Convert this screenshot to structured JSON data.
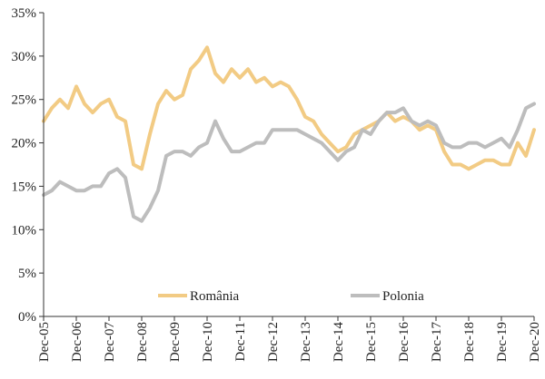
{
  "colors": {
    "romania": "#f2cb84",
    "polonia": "#bdbdbd",
    "axis": "#333333",
    "text": "#222222"
  },
  "chart_data": {
    "type": "line",
    "title": "",
    "xlabel": "",
    "ylabel": "",
    "ylim": [
      0,
      35
    ],
    "xlim": [
      "Dec-05",
      "Dec-20"
    ],
    "grid": false,
    "legend_position": "bottom",
    "y_ticks": [
      "0%",
      "5%",
      "10%",
      "15%",
      "20%",
      "25%",
      "30%",
      "35%"
    ],
    "x_ticks": [
      "Dec-05",
      "Dec-06",
      "Dec-07",
      "Dec-08",
      "Dec-09",
      "Dec-10",
      "Dec-11",
      "Dec-12",
      "Dec-13",
      "Dec-14",
      "Dec-15",
      "Dec-16",
      "Dec-17",
      "Dec-18",
      "Dec-19",
      "Dec-20"
    ],
    "series": [
      {
        "name": "România",
        "color": "#f2cb84",
        "x": [
          "Dec-05",
          "Mar-06",
          "Jun-06",
          "Sep-06",
          "Dec-06",
          "Mar-07",
          "Jun-07",
          "Sep-07",
          "Dec-07",
          "Mar-08",
          "Jun-08",
          "Sep-08",
          "Dec-08",
          "Mar-09",
          "Jun-09",
          "Sep-09",
          "Dec-09",
          "Mar-10",
          "Jun-10",
          "Sep-10",
          "Dec-10",
          "Mar-11",
          "Jun-11",
          "Sep-11",
          "Dec-11",
          "Mar-12",
          "Jun-12",
          "Sep-12",
          "Dec-12",
          "Mar-13",
          "Jun-13",
          "Sep-13",
          "Dec-13",
          "Mar-14",
          "Jun-14",
          "Sep-14",
          "Dec-14",
          "Mar-15",
          "Jun-15",
          "Sep-15",
          "Dec-15",
          "Mar-16",
          "Jun-16",
          "Sep-16",
          "Dec-16",
          "Mar-17",
          "Jun-17",
          "Sep-17",
          "Dec-17",
          "Mar-18",
          "Jun-18",
          "Sep-18",
          "Dec-18",
          "Mar-19",
          "Jun-19",
          "Sep-19",
          "Dec-19",
          "Mar-20",
          "Jun-20",
          "Sep-20",
          "Dec-20"
        ],
        "values": [
          22.5,
          24,
          25,
          24,
          26.5,
          24.5,
          23.5,
          24.5,
          25,
          23,
          22.5,
          17.5,
          17,
          21,
          24.5,
          26,
          25,
          25.5,
          28.5,
          29.5,
          31,
          28,
          27,
          28.5,
          27.5,
          28.5,
          27,
          27.5,
          26.5,
          27,
          26.5,
          25,
          23,
          22.5,
          21,
          20,
          19,
          19.5,
          21,
          21.5,
          22,
          22.5,
          23.5,
          22.5,
          23,
          22.5,
          21.5,
          22,
          21.5,
          19,
          17.5,
          17.5,
          17,
          17.5,
          18,
          18,
          17.5,
          17.5,
          20,
          18.5,
          21.5
        ]
      },
      {
        "name": "Polonia",
        "color": "#bdbdbd",
        "x": [
          "Dec-05",
          "Mar-06",
          "Jun-06",
          "Sep-06",
          "Dec-06",
          "Mar-07",
          "Jun-07",
          "Sep-07",
          "Dec-07",
          "Mar-08",
          "Jun-08",
          "Sep-08",
          "Dec-08",
          "Mar-09",
          "Jun-09",
          "Sep-09",
          "Dec-09",
          "Mar-10",
          "Jun-10",
          "Sep-10",
          "Dec-10",
          "Mar-11",
          "Jun-11",
          "Sep-11",
          "Dec-11",
          "Mar-12",
          "Jun-12",
          "Sep-12",
          "Dec-12",
          "Mar-13",
          "Jun-13",
          "Sep-13",
          "Dec-13",
          "Mar-14",
          "Jun-14",
          "Sep-14",
          "Dec-14",
          "Mar-15",
          "Jun-15",
          "Sep-15",
          "Dec-15",
          "Mar-16",
          "Jun-16",
          "Sep-16",
          "Dec-16",
          "Mar-17",
          "Jun-17",
          "Sep-17",
          "Dec-17",
          "Mar-18",
          "Jun-18",
          "Sep-18",
          "Dec-18",
          "Mar-19",
          "Jun-19",
          "Sep-19",
          "Dec-19",
          "Mar-20",
          "Jun-20",
          "Sep-20",
          "Dec-20"
        ],
        "values": [
          14,
          14.5,
          15.5,
          15,
          14.5,
          14.5,
          15,
          15,
          16.5,
          17,
          16,
          11.5,
          11,
          12.5,
          14.5,
          18.5,
          19,
          19,
          18.5,
          19.5,
          20,
          22.5,
          20.5,
          19,
          19,
          19.5,
          20,
          20,
          21.5,
          21.5,
          21.5,
          21.5,
          21,
          20.5,
          20,
          19,
          18,
          19,
          19.5,
          21.5,
          21,
          22.5,
          23.5,
          23.5,
          24,
          22.5,
          22,
          22.5,
          22,
          20,
          19.5,
          19.5,
          20,
          20,
          19.5,
          20,
          20.5,
          19.5,
          21.5,
          24,
          24.5
        ]
      }
    ]
  }
}
